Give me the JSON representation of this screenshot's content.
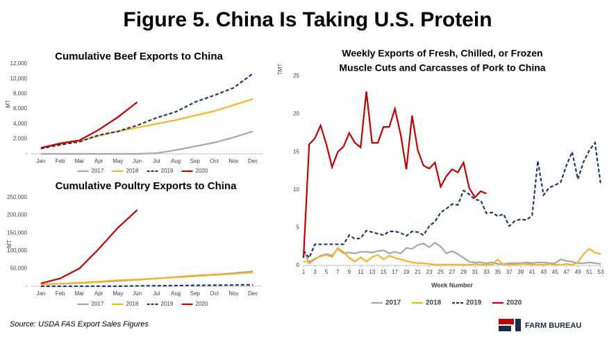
{
  "title": "Figure 5. China Is Taking U.S. Protein",
  "source": "Source:  USDA FAS Export Sales Figures",
  "logo": "FARM BUREAU",
  "chart_data": [
    {
      "type": "line",
      "title": "Cumulative Beef Exports to China",
      "ylabel": "MT",
      "categories": [
        "Jan",
        "Feb",
        "Mar",
        "Apr",
        "May",
        "Jun",
        "Jul",
        "Aug",
        "Sep",
        "Oct",
        "Nov",
        "Dec"
      ],
      "ylim": [
        0,
        12000
      ],
      "yticks": [
        {
          "value": 0,
          "label": "-"
        },
        {
          "value": 2000,
          "label": "2,000"
        },
        {
          "value": 4000,
          "label": "4,000"
        },
        {
          "value": 6000,
          "label": "6,000"
        },
        {
          "value": 8000,
          "label": "8,000"
        },
        {
          "value": 10000,
          "label": "10,000"
        },
        {
          "value": 12000,
          "label": "12,000"
        }
      ],
      "grid": false,
      "series": [
        {
          "name": "2017",
          "color": "#a6a6a6",
          "dash": false,
          "values": [
            0,
            0,
            0,
            0,
            0,
            0,
            100,
            500,
            1000,
            1500,
            2200,
            3000
          ]
        },
        {
          "name": "2018",
          "color": "#f5b325",
          "dash": false,
          "values": [
            800,
            1300,
            1700,
            2400,
            3000,
            3500,
            4000,
            4500,
            5100,
            5700,
            6500,
            7300
          ]
        },
        {
          "name": "2019",
          "color": "#1f3864",
          "dash": true,
          "values": [
            700,
            1200,
            1600,
            2500,
            3000,
            3800,
            4800,
            5600,
            6900,
            7800,
            8800,
            10700
          ]
        },
        {
          "name": "2020",
          "color": "#c00000",
          "dash": false,
          "values": [
            800,
            1400,
            1800,
            3200,
            4900,
            6900,
            null,
            null,
            null,
            null,
            null,
            null
          ]
        }
      ]
    },
    {
      "type": "line",
      "title": "Cumulative Poultry Exports to China",
      "ylabel": "MT",
      "categories": [
        "Jan",
        "Feb",
        "Mar",
        "Apr",
        "May",
        "Jun",
        "Jul",
        "Aug",
        "Sep",
        "Oct",
        "Nov",
        "Dec"
      ],
      "ylim": [
        0,
        250000
      ],
      "yticks": [
        {
          "value": 0,
          "label": "-"
        },
        {
          "value": 50000,
          "label": "50,000"
        },
        {
          "value": 100000,
          "label": "100,000"
        },
        {
          "value": 150000,
          "label": "150,000"
        },
        {
          "value": 200000,
          "label": "200,000"
        },
        {
          "value": 250000,
          "label": "250,000"
        }
      ],
      "grid": false,
      "series": [
        {
          "name": "2017",
          "color": "#a6a6a6",
          "dash": false,
          "values": [
            5000,
            7000,
            9000,
            12000,
            15000,
            18000,
            22000,
            26000,
            30000,
            33000,
            37000,
            42000
          ]
        },
        {
          "name": "2018",
          "color": "#f5b325",
          "dash": false,
          "values": [
            5000,
            7000,
            10000,
            13000,
            17000,
            19000,
            22000,
            25000,
            28000,
            32000,
            35000,
            39000
          ]
        },
        {
          "name": "2019",
          "color": "#1f3864",
          "dash": true,
          "values": [
            0,
            0,
            0,
            0,
            0,
            1000,
            1500,
            2000,
            2500,
            3000,
            3500,
            4000
          ]
        },
        {
          "name": "2020",
          "color": "#c00000",
          "dash": false,
          "values": [
            8000,
            22000,
            50000,
            105000,
            165000,
            215000,
            null,
            null,
            null,
            null,
            null,
            null
          ]
        }
      ]
    },
    {
      "type": "line",
      "title": [
        "Weekly Exports of Fresh, Chilled, or Frozen",
        "Muscle Cuts and Carcasses of Pork to China"
      ],
      "ylabel": "TMT",
      "xlabel": "Week Number",
      "x": [
        1,
        2,
        3,
        4,
        5,
        6,
        7,
        8,
        9,
        10,
        11,
        12,
        13,
        14,
        15,
        16,
        17,
        18,
        19,
        20,
        21,
        22,
        23,
        24,
        25,
        26,
        27,
        28,
        29,
        30,
        31,
        32,
        33,
        34,
        35,
        36,
        37,
        38,
        39,
        40,
        41,
        42,
        43,
        44,
        45,
        46,
        47,
        48,
        49,
        50,
        51,
        52,
        53
      ],
      "xlim": [
        1,
        53
      ],
      "xticks": [
        1,
        3,
        5,
        7,
        9,
        11,
        13,
        15,
        17,
        19,
        21,
        23,
        25,
        27,
        29,
        31,
        33,
        35,
        37,
        39,
        41,
        43,
        45,
        47,
        49,
        51,
        53
      ],
      "ylim": [
        0,
        25
      ],
      "yticks": [
        0,
        5,
        10,
        15,
        20,
        25
      ],
      "grid": false,
      "series": [
        {
          "name": "2017",
          "color": "#a6a6a6",
          "dash": false,
          "values": [
            2,
            0.3,
            0.8,
            1.3,
            1.5,
            1.3,
            2.2,
            1.6,
            1.7,
            1.6,
            1.8,
            1.8,
            1.7,
            1.9,
            2,
            1.6,
            1.8,
            1.6,
            2.3,
            2.2,
            2.7,
            2.9,
            2.4,
            3,
            2.5,
            1.6,
            1.9,
            1.5,
            1,
            0.5,
            0.4,
            0.4,
            0.3,
            0.4,
            0.2,
            0.2,
            0.3,
            0.3,
            0.3,
            0.4,
            0.3,
            0.4,
            0.4,
            0.3,
            0.3,
            0.8,
            0.6,
            0.5,
            0.3,
            0.3,
            0.4,
            0.3,
            0.2
          ]
        },
        {
          "name": "2018",
          "color": "#f5b325",
          "dash": false,
          "values": [
            0.5,
            0.5,
            0.9,
            1.2,
            1.4,
            1.1,
            2.3,
            1.8,
            1,
            0.5,
            1.1,
            0.5,
            1.1,
            1.4,
            0.8,
            1.3,
            1,
            0.8,
            0.6,
            0.4,
            0.3,
            0.3,
            0.2,
            0.1,
            0.1,
            0.1,
            0.1,
            0.1,
            0.1,
            0.1,
            0.2,
            0.1,
            0.1,
            0.1,
            0.8,
            0.1,
            0.1,
            0.1,
            0.2,
            0.2,
            0.1,
            0.1,
            0.1,
            0.2,
            0.1,
            0.1,
            0.2,
            0.1,
            0.4,
            1.5,
            2.2,
            1.7,
            1.5
          ]
        },
        {
          "name": "2019",
          "color": "#1f3864",
          "dash": true,
          "values": [
            2,
            1,
            2.8,
            2.8,
            2.8,
            2.8,
            2.8,
            2.8,
            4,
            3.5,
            3.6,
            4.6,
            4.4,
            4.2,
            4,
            4.5,
            4.5,
            4.3,
            3.9,
            4.5,
            4.4,
            4,
            5.2,
            5.8,
            7,
            7.5,
            8.1,
            8,
            9.9,
            9.4,
            8.7,
            8.6,
            6.9,
            7,
            6.5,
            6.8,
            5.2,
            5.9,
            6.1,
            6,
            6.6,
            13.8,
            9.3,
            10.3,
            10.6,
            11,
            13.2,
            15,
            11.4,
            13.7,
            15.2,
            16.2,
            10.7
          ]
        },
        {
          "name": "2020",
          "color": "#c00000",
          "dash": false,
          "values": [
            1,
            16,
            16.8,
            18.5,
            16,
            13,
            15,
            15.7,
            17.5,
            16.2,
            15.6,
            23,
            16.2,
            16.2,
            18.3,
            18.3,
            20.7,
            17.3,
            12.7,
            19.8,
            15.2,
            13.2,
            12.8,
            13.6,
            10.4,
            11.8,
            12.7,
            12.3,
            13.6,
            10.2,
            9,
            9.8,
            9.5,
            null,
            null,
            null,
            null,
            null,
            null,
            null,
            null,
            null,
            null,
            null,
            null,
            null,
            null,
            null,
            null,
            null,
            null,
            null,
            null
          ]
        }
      ]
    }
  ]
}
